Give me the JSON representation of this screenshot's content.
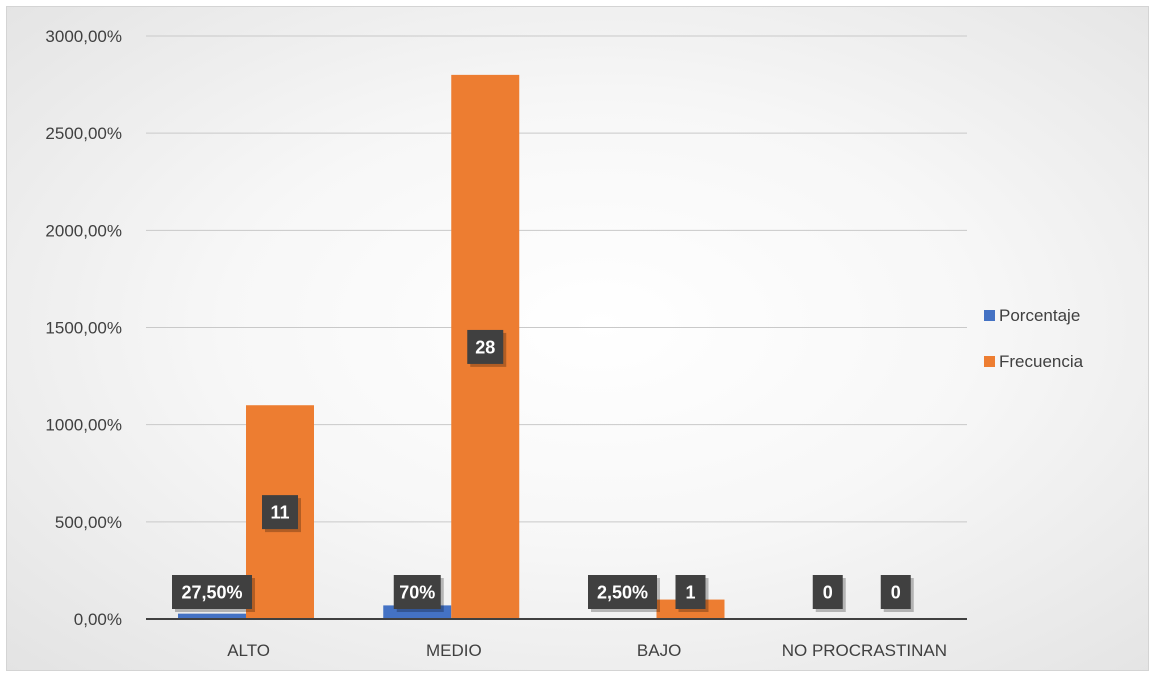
{
  "chart_data": {
    "type": "bar",
    "categories": [
      "ALTO",
      "MEDIO",
      "BAJO",
      "NO PROCRASTINAN"
    ],
    "series": [
      {
        "name": "Porcentaje",
        "color": "#4472c4",
        "values": [
          27.5,
          70,
          2.5,
          0
        ],
        "data_labels": [
          "27,50%",
          "70%",
          "2,50%",
          "0"
        ]
      },
      {
        "name": "Frecuencia",
        "color": "#ed7d31",
        "values": [
          1100,
          2800,
          100,
          0
        ],
        "data_labels": [
          "11",
          "28",
          "1",
          "0"
        ]
      }
    ],
    "ylim": [
      0,
      3000
    ],
    "yticks": [
      "0,00%",
      "500,00%",
      "1000,00%",
      "1500,00%",
      "2000,00%",
      "2500,00%",
      "3000,00%"
    ],
    "grid": true,
    "legend_position": "right",
    "title": "",
    "xlabel": "",
    "ylabel": ""
  }
}
